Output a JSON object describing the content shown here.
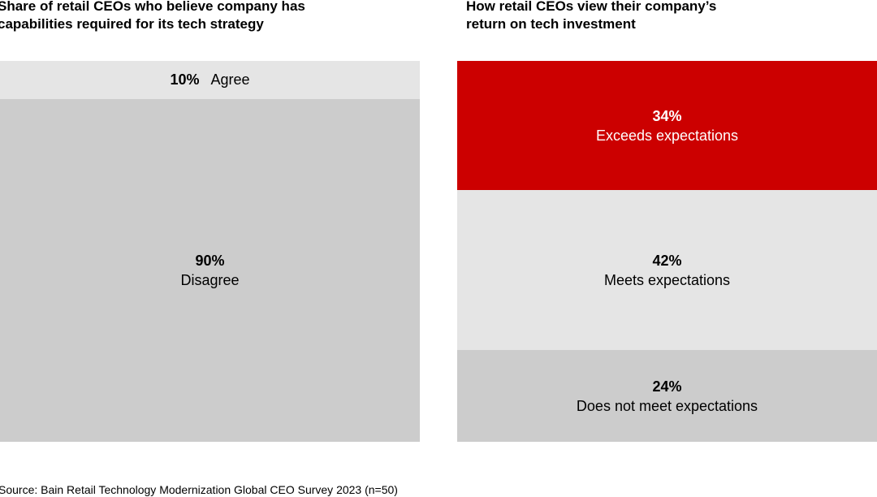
{
  "chart_data": [
    {
      "type": "bar",
      "stacked": true,
      "orientation": "vertical-100%",
      "title": "Share of retail CEOs who believe company has\ncapabilities required for its tech strategy",
      "categories": [
        "Agree",
        "Disagree"
      ],
      "values": [
        10,
        90
      ],
      "labels": [
        "10%",
        "90%"
      ],
      "colors": [
        "#e5e5e5",
        "#cccccc"
      ],
      "text_colors": [
        "#000000",
        "#000000"
      ],
      "inline_label": [
        true,
        false
      ]
    },
    {
      "type": "bar",
      "stacked": true,
      "orientation": "vertical-100%",
      "title": "How retail CEOs view their company’s\nreturn on tech investment",
      "categories": [
        "Exceeds expectations",
        "Meets expectations",
        "Does not meet expectations"
      ],
      "values": [
        34,
        42,
        24
      ],
      "labels": [
        "34%",
        "42%",
        "24%"
      ],
      "colors": [
        "#cc0000",
        "#e5e5e5",
        "#cccccc"
      ],
      "text_colors": [
        "#ffffff",
        "#000000",
        "#000000"
      ],
      "inline_label": [
        false,
        false,
        false
      ]
    }
  ],
  "source": "Source: Bain Retail Technology Modernization Global CEO Survey 2023 (n=50)"
}
